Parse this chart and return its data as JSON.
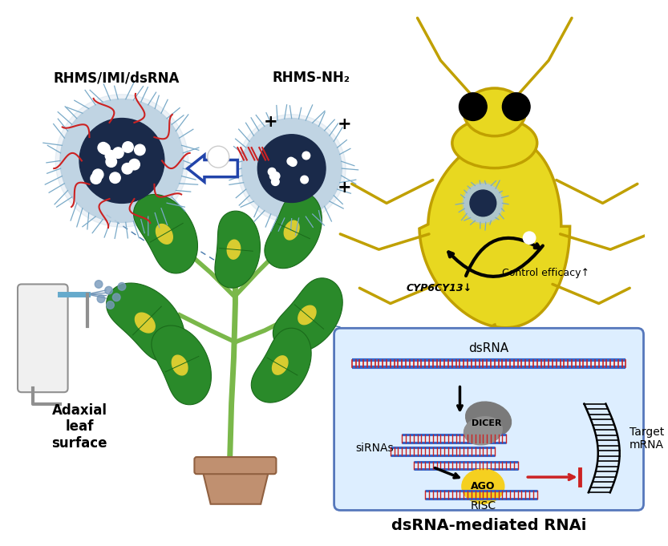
{
  "bg_color": "#ffffff",
  "label_rhms_imi": "RHMS/IMI/dsRNA",
  "label_rhms_nh2": "RHMS-NH₂",
  "label_adaxial": "Adaxial\nleaf\nsurface",
  "label_dsrna_mediated": "dsRNA-mediated RNAi",
  "label_dsrna": "dsRNA",
  "label_dicer": "DICER",
  "label_sirnas": "siRNAs",
  "label_ago": "AGO",
  "label_risc": "RISC",
  "label_target_mrna": "Target\nmRNA",
  "label_cyp6cy13": "CYP6CY13↓",
  "label_control_efficacy": "Control efficacy↑",
  "nano_color": "#b8cfe0",
  "nano_inner": "#1a2a4a",
  "nano_spike": "#7aaac8",
  "aphid_body": "#e8d820",
  "aphid_outline": "#c0a000",
  "aphid_dark": "#a08800",
  "rnai_box_fill": "#ddeeff",
  "rnai_box_border": "#5577bb",
  "dsrna_red": "#cc2222",
  "dsrna_blue": "#3366cc",
  "arrow_blue": "#2244aa",
  "ago_color": "#f5d020",
  "dicer_color": "#808080",
  "plant_green": "#2a8a2a",
  "plant_dark_green": "#1a6a1a",
  "plant_yellow": "#d8cc30",
  "pot_color": "#c09070",
  "pot_border": "#906040",
  "spray_white": "#f0f0f0",
  "spray_grey": "#909090",
  "spray_blue": "#66aacc"
}
